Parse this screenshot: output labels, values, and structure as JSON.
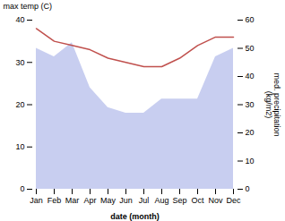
{
  "chart_data": {
    "type": "line",
    "categories": [
      "Jan",
      "Feb",
      "Mar",
      "Apr",
      "May",
      "Jun",
      "Jul",
      "Aug",
      "Sep",
      "Oct",
      "Nov",
      "Dec"
    ],
    "xlabel": "date (month)",
    "ylabel": "max temp (C)",
    "y2label": "med. precipitation\n(kg/m2)",
    "ylim": [
      0,
      40
    ],
    "yticks": [
      0,
      10,
      20,
      30,
      40
    ],
    "y2lim": [
      0,
      60
    ],
    "y2ticks": [
      0,
      10,
      20,
      30,
      40,
      50,
      60
    ],
    "grid": false,
    "series": [
      {
        "type": "area",
        "axis": "y2",
        "color": "#aab4e8",
        "values": [
          50,
          47,
          52,
          36,
          29,
          27,
          27,
          32,
          32,
          32,
          47,
          50
        ]
      },
      {
        "type": "line",
        "color": "#c0504d",
        "values": [
          38,
          35,
          34,
          33,
          31,
          30,
          29,
          29,
          31,
          34,
          36,
          36
        ]
      }
    ]
  }
}
